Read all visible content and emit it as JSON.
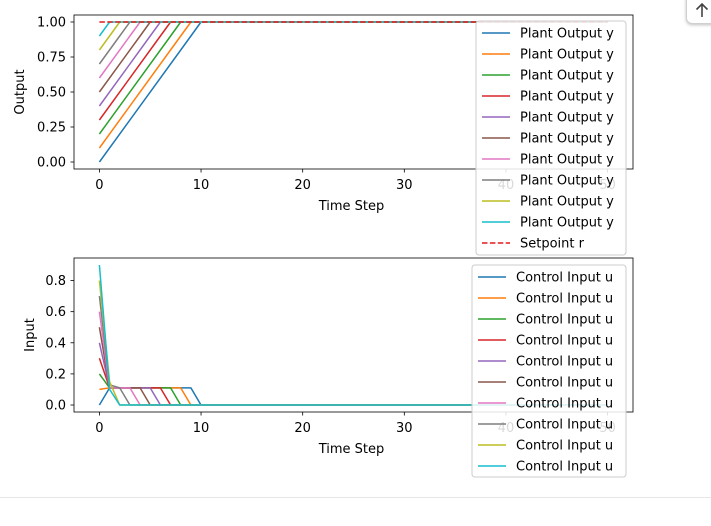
{
  "chart_data": [
    {
      "type": "line",
      "xlabel": "Time Step",
      "ylabel": "Output",
      "xlim": [
        -2.5,
        52.5
      ],
      "ylim": [
        -0.05,
        1.05
      ],
      "xticks": [
        "0",
        "10",
        "20",
        "30",
        "40",
        "50"
      ],
      "yticks": [
        "0.00",
        "0.25",
        "0.50",
        "0.75",
        "1.00"
      ],
      "legend_position": "right",
      "series": [
        {
          "name": "Plant Output y",
          "color": "#1f77b4",
          "x": [
            0,
            9,
            10,
            50
          ],
          "values": [
            0.0,
            0.9,
            1.0,
            1.0
          ]
        },
        {
          "name": "Plant Output y",
          "color": "#ff7f0e",
          "x": [
            0,
            8,
            9,
            50
          ],
          "values": [
            0.1,
            0.9,
            1.0,
            1.0
          ]
        },
        {
          "name": "Plant Output y",
          "color": "#2ca02c",
          "x": [
            0,
            7,
            8,
            50
          ],
          "values": [
            0.2,
            0.9,
            1.0,
            1.0
          ]
        },
        {
          "name": "Plant Output y",
          "color": "#d62728",
          "x": [
            0,
            6,
            7,
            50
          ],
          "values": [
            0.3,
            0.9,
            1.0,
            1.0
          ]
        },
        {
          "name": "Plant Output y",
          "color": "#9467bd",
          "x": [
            0,
            5,
            6,
            50
          ],
          "values": [
            0.4,
            0.9,
            1.0,
            1.0
          ]
        },
        {
          "name": "Plant Output y",
          "color": "#8c564b",
          "x": [
            0,
            4,
            5,
            50
          ],
          "values": [
            0.5,
            0.9,
            1.0,
            1.0
          ]
        },
        {
          "name": "Plant Output y",
          "color": "#e377c2",
          "x": [
            0,
            3,
            4,
            50
          ],
          "values": [
            0.6,
            0.9,
            1.0,
            1.0
          ]
        },
        {
          "name": "Plant Output y",
          "color": "#7f7f7f",
          "x": [
            0,
            2,
            3,
            50
          ],
          "values": [
            0.7,
            0.9,
            1.0,
            1.0
          ]
        },
        {
          "name": "Plant Output y",
          "color": "#bcbd22",
          "x": [
            0,
            1,
            2,
            50
          ],
          "values": [
            0.8,
            0.9,
            1.0,
            1.0
          ]
        },
        {
          "name": "Plant Output y",
          "color": "#17becf",
          "x": [
            0,
            1,
            50
          ],
          "values": [
            0.9,
            1.0,
            1.0
          ]
        },
        {
          "name": "Setpoint r",
          "color": "#e41a1c",
          "dashed": true,
          "x": [
            0,
            50
          ],
          "values": [
            1.0,
            1.0
          ]
        }
      ]
    },
    {
      "type": "line",
      "xlabel": "Time Step",
      "ylabel": "Input",
      "xlim": [
        -2.5,
        52.5
      ],
      "ylim": [
        -0.045,
        0.945
      ],
      "xticks": [
        "0",
        "10",
        "20",
        "30",
        "40",
        "50"
      ],
      "yticks": [
        "0.0",
        "0.2",
        "0.4",
        "0.6",
        "0.8"
      ],
      "legend_position": "right",
      "series": [
        {
          "name": "Control Input u",
          "color": "#1f77b4",
          "x": [
            0,
            1,
            9,
            10,
            50
          ],
          "values": [
            0.0,
            0.11,
            0.11,
            0.0,
            0.0
          ]
        },
        {
          "name": "Control Input u",
          "color": "#ff7f0e",
          "x": [
            0,
            1,
            8,
            9,
            50
          ],
          "values": [
            0.1,
            0.11,
            0.11,
            0.0,
            0.0
          ]
        },
        {
          "name": "Control Input u",
          "color": "#2ca02c",
          "x": [
            0,
            1,
            7,
            8,
            50
          ],
          "values": [
            0.2,
            0.11,
            0.11,
            0.0,
            0.0
          ]
        },
        {
          "name": "Control Input u",
          "color": "#d62728",
          "x": [
            0,
            1,
            6,
            7,
            50
          ],
          "values": [
            0.3,
            0.11,
            0.11,
            0.0,
            0.0
          ]
        },
        {
          "name": "Control Input u",
          "color": "#9467bd",
          "x": [
            0,
            1,
            5,
            6,
            50
          ],
          "values": [
            0.4,
            0.11,
            0.11,
            0.0,
            0.0
          ]
        },
        {
          "name": "Control Input u",
          "color": "#8c564b",
          "x": [
            0,
            1,
            4,
            5,
            50
          ],
          "values": [
            0.5,
            0.11,
            0.11,
            0.0,
            0.0
          ]
        },
        {
          "name": "Control Input u",
          "color": "#e377c2",
          "x": [
            0,
            1,
            3,
            4,
            50
          ],
          "values": [
            0.6,
            0.11,
            0.11,
            0.0,
            0.0
          ]
        },
        {
          "name": "Control Input u",
          "color": "#7f7f7f",
          "x": [
            0,
            1,
            2,
            3,
            50
          ],
          "values": [
            0.7,
            0.13,
            0.11,
            0.0,
            0.0
          ]
        },
        {
          "name": "Control Input u",
          "color": "#bcbd22",
          "x": [
            0,
            1,
            2,
            50
          ],
          "values": [
            0.8,
            0.15,
            0.0,
            0.0
          ]
        },
        {
          "name": "Control Input u",
          "color": "#17becf",
          "x": [
            0,
            1,
            2,
            50
          ],
          "values": [
            0.9,
            0.1,
            0.0,
            0.0
          ]
        }
      ]
    }
  ],
  "ui": {
    "scroll_top_icon": "arrow-up-icon"
  }
}
